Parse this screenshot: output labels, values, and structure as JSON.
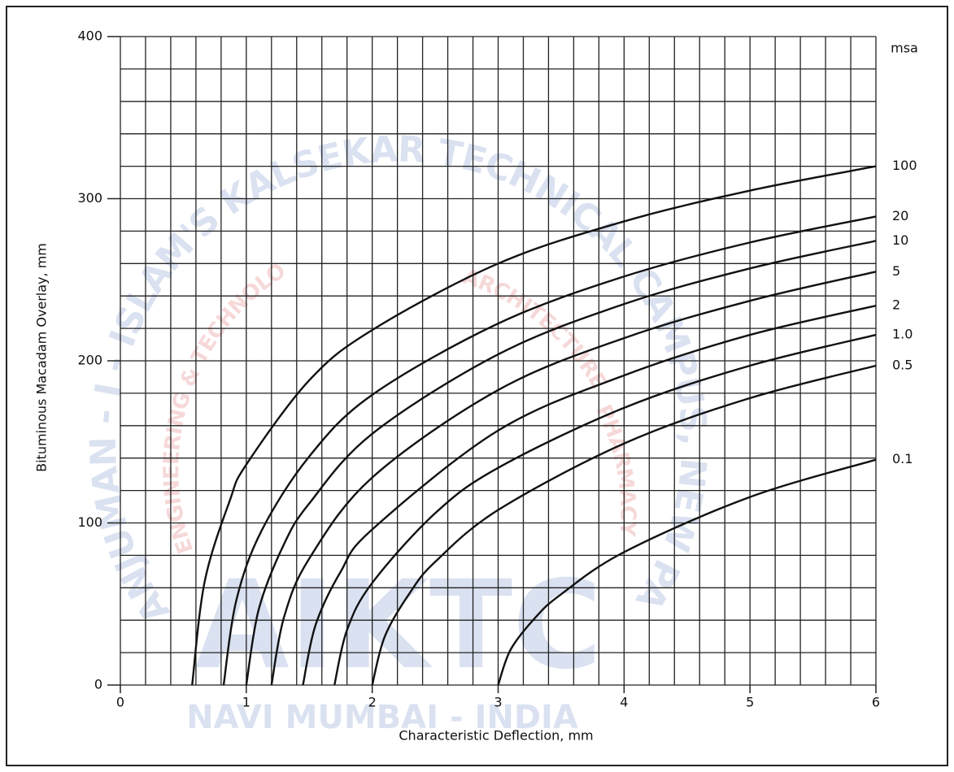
{
  "chart_data": {
    "type": "line",
    "x_label": "Characteristic Deflection, mm",
    "y_label": "Bituminous Macadam Overlay, mm",
    "legend_title": "msa",
    "xlim": [
      0,
      6
    ],
    "ylim": [
      0,
      400
    ],
    "xticks": [
      0,
      1,
      2,
      3,
      4,
      5,
      6
    ],
    "yticks": [
      0,
      100,
      200,
      300,
      400
    ],
    "xgrid": [
      0,
      0.2,
      0.4,
      0.6,
      0.8,
      1,
      1.2,
      1.4,
      1.6,
      1.8,
      2,
      2.2,
      2.4,
      2.6,
      2.8,
      3,
      3.2,
      3.4,
      3.6,
      3.8,
      4,
      4.2,
      4.4,
      4.6,
      4.8,
      5,
      5.2,
      5.4,
      5.6,
      5.8,
      6
    ],
    "ygrid": [
      0,
      20,
      40,
      60,
      80,
      100,
      120,
      140,
      160,
      180,
      200,
      220,
      240,
      260,
      280,
      300,
      320,
      340,
      360,
      380,
      400
    ],
    "grid": true,
    "series": [
      {
        "name": "100",
        "color": "#111111",
        "x": [
          0.57,
          0.67,
          0.87,
          1,
          1.5,
          2,
          3,
          4,
          5,
          6
        ],
        "values": [
          0,
          64,
          114,
          136,
          188,
          219,
          260,
          286,
          305,
          320
        ]
      },
      {
        "name": "20",
        "color": "#111111",
        "x": [
          0.82,
          0.92,
          1.12,
          1.5,
          2,
          3,
          4,
          5,
          6
        ],
        "values": [
          0,
          52,
          95,
          141,
          179,
          223,
          252,
          273,
          289
        ]
      },
      {
        "name": "10",
        "color": "#111111",
        "x": [
          1,
          1.1,
          1.3,
          1.5,
          2,
          3,
          4,
          5,
          6
        ],
        "values": [
          0,
          47,
          87,
          112,
          155,
          204,
          235,
          257,
          274
        ]
      },
      {
        "name": "5",
        "color": "#111111",
        "x": [
          1.2,
          1.3,
          1.5,
          2,
          3,
          4,
          5,
          6
        ],
        "values": [
          0,
          42,
          78,
          128,
          182,
          214,
          237,
          255
        ]
      },
      {
        "name": "2",
        "color": "#111111",
        "x": [
          1.45,
          1.55,
          1.75,
          2,
          3,
          4,
          5,
          6
        ],
        "values": [
          0,
          37,
          70,
          96,
          157,
          191,
          216,
          234
        ]
      },
      {
        "name": "1.0",
        "color": "#111111",
        "x": [
          1.7,
          1.8,
          2,
          2.5,
          3,
          4,
          5,
          6
        ],
        "values": [
          0,
          34,
          63,
          106,
          134,
          171,
          197,
          216
        ]
      },
      {
        "name": "0.5",
        "color": "#111111",
        "x": [
          2,
          2.1,
          2.3,
          2.5,
          3,
          4,
          5,
          6
        ],
        "values": [
          0,
          30,
          57,
          76,
          108,
          149,
          177,
          197
        ]
      },
      {
        "name": "0.1",
        "color": "#111111",
        "x": [
          3,
          3.1,
          3.3,
          3.5,
          4,
          5,
          6
        ],
        "values": [
          0,
          22,
          42,
          56,
          82,
          116,
          139
        ]
      }
    ],
    "watermark": {
      "arc_outer": "ANJUMAN - I - ISLAM'S KALSEKAR TECHNICAL CAMPUS, NEW PANVEL",
      "arc_left": "ENGINEERING & TECHNOLOGY",
      "arc_mid": "ARCHITECTURE",
      "arc_right": "PHARMACY",
      "logo": "AIKTC",
      "bottom": "NAVI MUMBAI - INDIA"
    }
  }
}
